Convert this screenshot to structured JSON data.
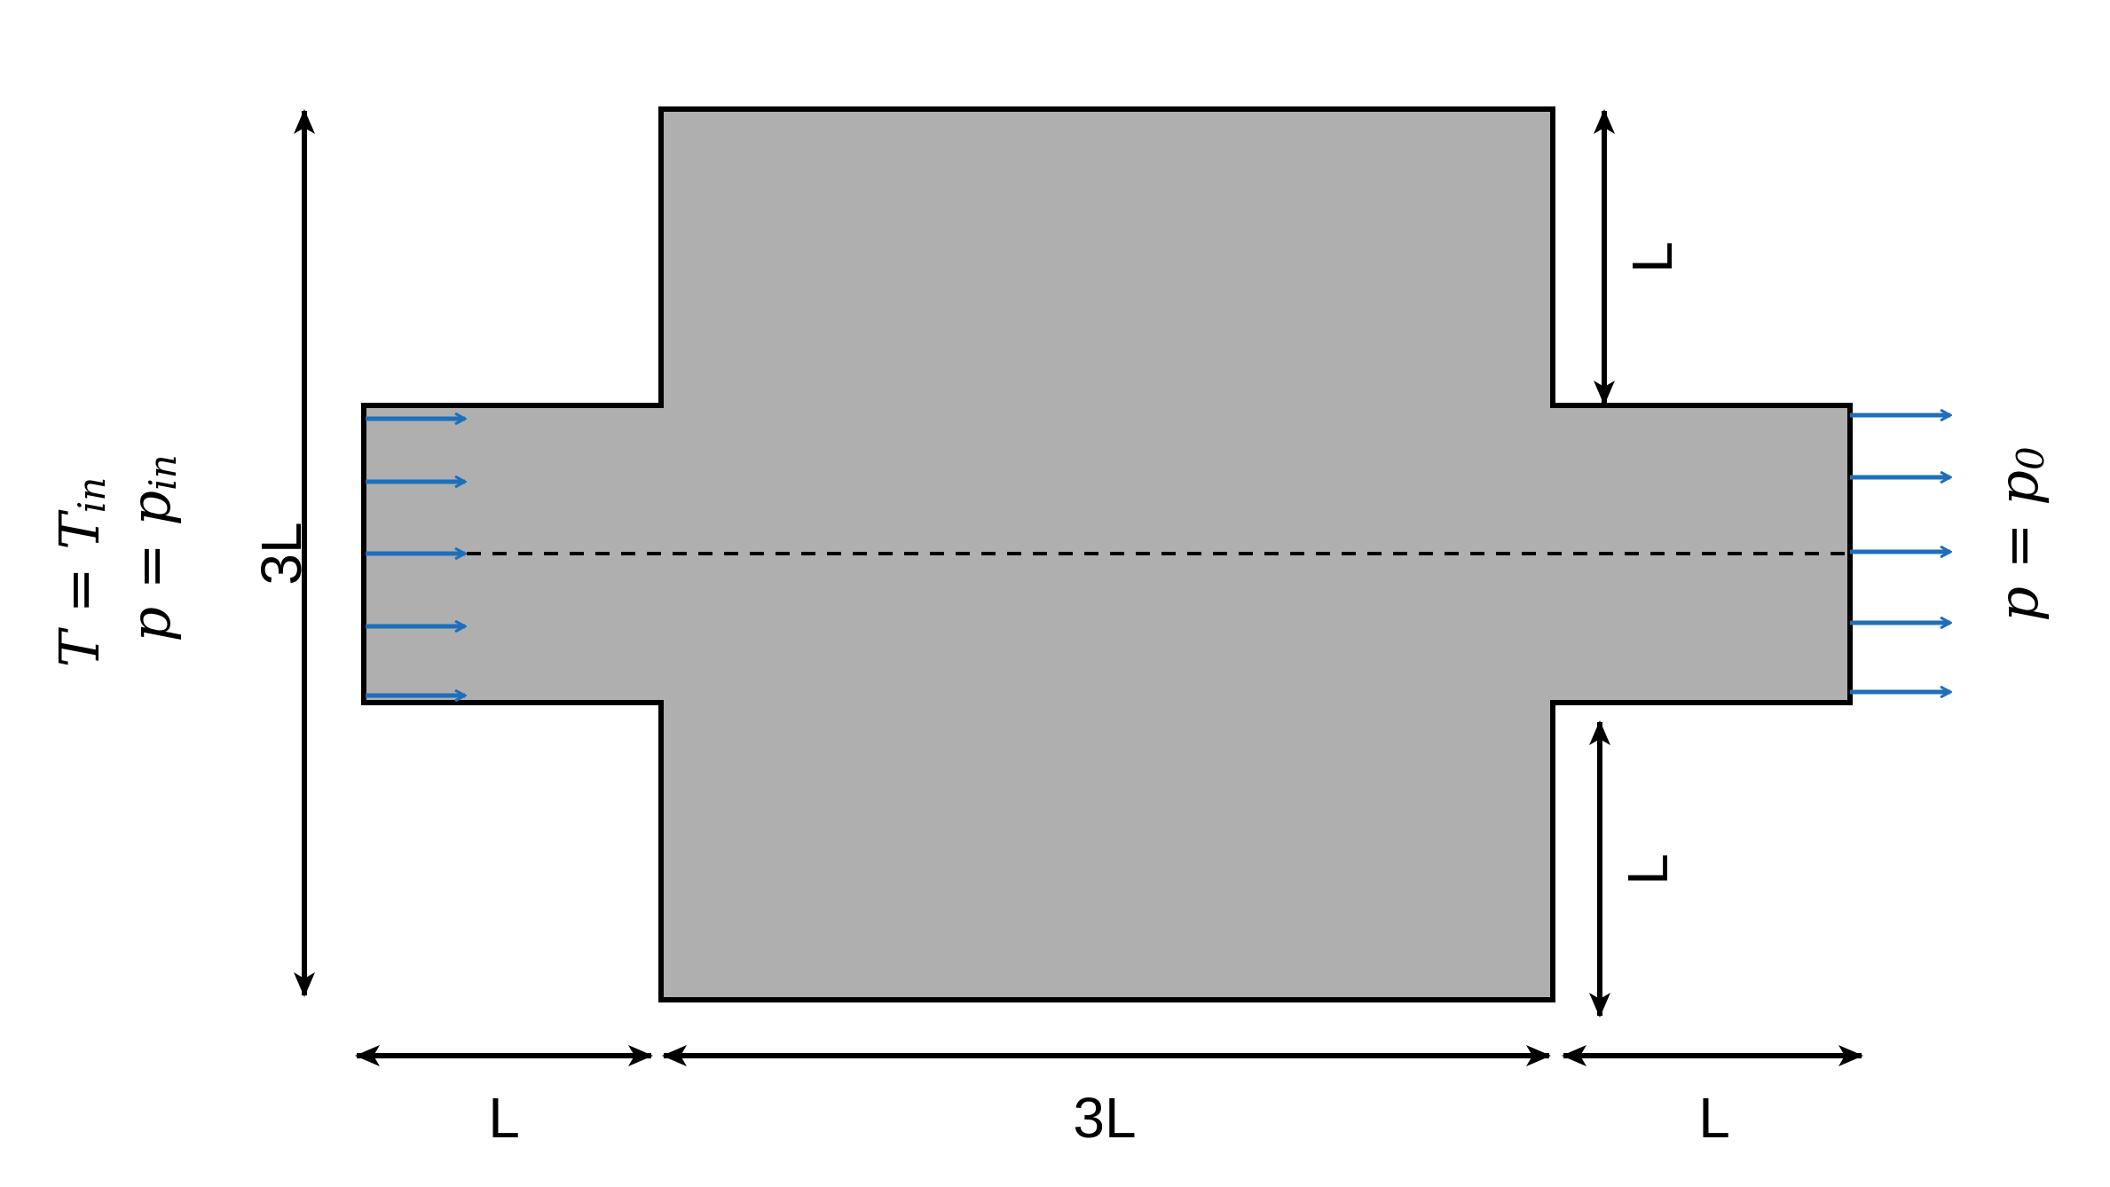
{
  "colors": {
    "domain_fill": "#afafaf",
    "outline": "#000000",
    "flow_arrow": "#1e6fbb",
    "background": "#ffffff"
  },
  "labels": {
    "inlet_length": "L",
    "chamber_length": "3L",
    "outlet_length": "L",
    "total_height": "3L",
    "upper_step_height": "L",
    "lower_step_height": "L"
  },
  "inlet_bc": {
    "temperature": {
      "lhs": "T",
      "eq": " = ",
      "rhs": "T",
      "rhs_sub": "in"
    },
    "pressure": {
      "lhs": "p",
      "eq": " = ",
      "rhs": "p",
      "rhs_sub": "in"
    }
  },
  "outlet_bc": {
    "pressure": {
      "lhs": "p",
      "eq": " = ",
      "rhs": "p",
      "rhs_sub": "0"
    }
  },
  "icons": {
    "inlet_arrows": "right-arrow-icon",
    "outlet_arrows": "right-arrow-icon",
    "dimension_arrows": "double-headed-arrow-icon"
  }
}
